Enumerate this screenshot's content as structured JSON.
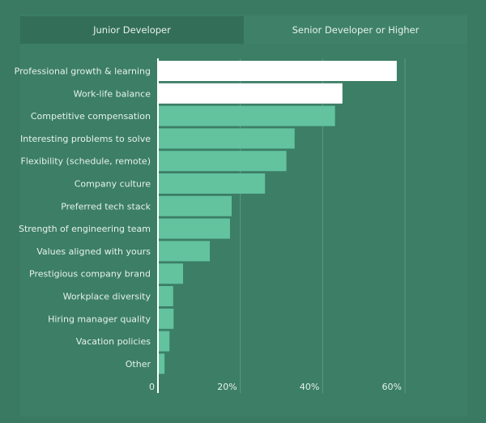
{
  "tabs": [
    {
      "label": "Junior Developer",
      "active": false
    },
    {
      "label": "Senior Developer or Higher",
      "active": true
    }
  ],
  "chart_data": {
    "type": "bar",
    "orientation": "horizontal",
    "categories": [
      "Professional growth & learning",
      "Work-life balance",
      "Competitive compensation",
      "Interesting problems to solve",
      "Flexibility (schedule, remote)",
      "Company culture",
      "Preferred tech stack",
      "Strength of engineering team",
      "Values aligned with yours",
      "Prestigious company brand",
      "Workplace diversity",
      "Hiring manager quality",
      "Vacation policies",
      "Other"
    ],
    "values": [
      58,
      44.8,
      43,
      33.2,
      31.2,
      26,
      17.9,
      17.5,
      12.6,
      6.1,
      3.7,
      3.8,
      2.8,
      1.6
    ],
    "highlighted": [
      0,
      1
    ],
    "xlim": [
      0,
      60
    ],
    "xticks": [
      0,
      20,
      40,
      60
    ],
    "xtick_labels": [
      "0",
      "20%",
      "40%",
      "60%"
    ],
    "grid": true,
    "colors": {
      "bar": "#62c39e",
      "highlight": "#ffffff",
      "grid": "#5e9a83"
    }
  }
}
